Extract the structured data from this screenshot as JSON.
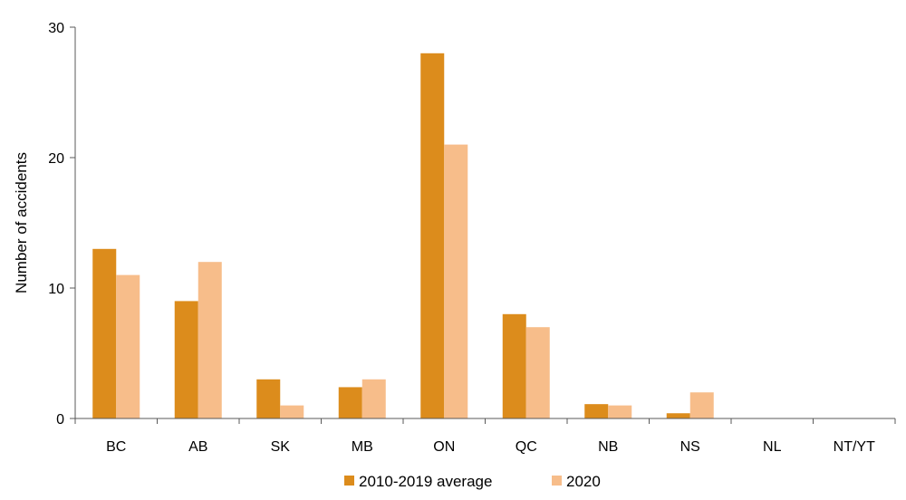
{
  "chart_data": {
    "type": "bar",
    "categories": [
      "BC",
      "AB",
      "SK",
      "MB",
      "ON",
      "QC",
      "NB",
      "NS",
      "NL",
      "NT/YT"
    ],
    "series": [
      {
        "name": "2010-2019 average",
        "color": "#dc8c1c",
        "values": [
          13,
          9,
          3,
          2.4,
          28,
          8,
          1.1,
          0.4,
          0,
          0
        ]
      },
      {
        "name": "2020",
        "color": "#f7bd8a",
        "values": [
          11,
          12,
          1,
          3,
          21,
          7,
          1,
          2,
          0,
          0
        ]
      }
    ],
    "title": "",
    "xlabel": "",
    "ylabel": "Number of accidents",
    "ylim": [
      0,
      30
    ],
    "yticks": [
      0,
      10,
      20,
      30
    ],
    "grid": false,
    "legend_position": "bottom-center"
  }
}
